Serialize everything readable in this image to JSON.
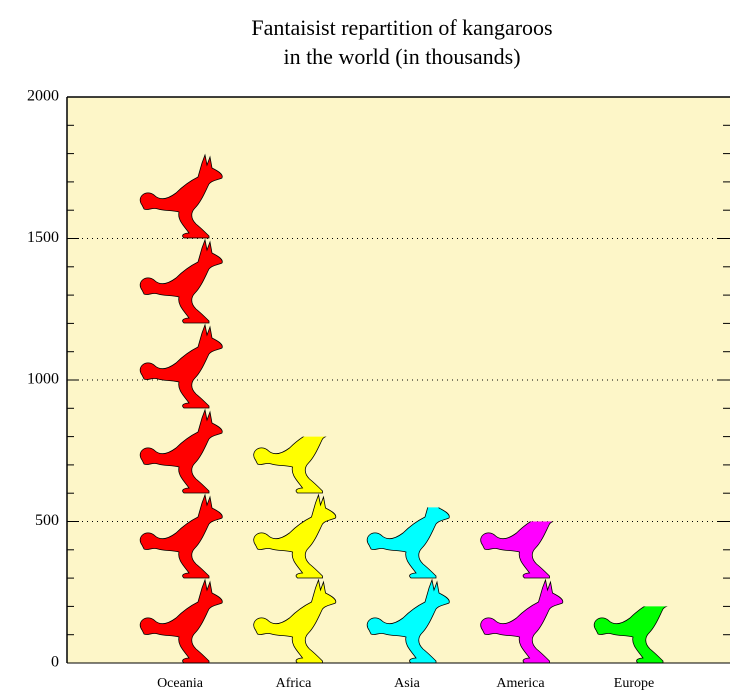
{
  "chart_data": {
    "type": "pictogram",
    "title": [
      "Fantaisist repartition of kangaroos",
      "in the world (in thousands)"
    ],
    "categories": [
      "Oceania",
      "Africa",
      "Asia",
      "America",
      "Europe"
    ],
    "values": [
      1800,
      800,
      550,
      500,
      200
    ],
    "colors": [
      "#ff0000",
      "#ffff00",
      "#00ffff",
      "#ff00ff",
      "#00ff00"
    ],
    "background": "#fdf6c8",
    "ylim": [
      0,
      2000
    ],
    "yticks": [
      0,
      500,
      1000,
      1500,
      2000
    ],
    "yminorticks": [
      100,
      200,
      300,
      400,
      600,
      700,
      800,
      900,
      1100,
      1200,
      1300,
      1400,
      1600,
      1700,
      1800,
      1900
    ],
    "grid": true
  }
}
